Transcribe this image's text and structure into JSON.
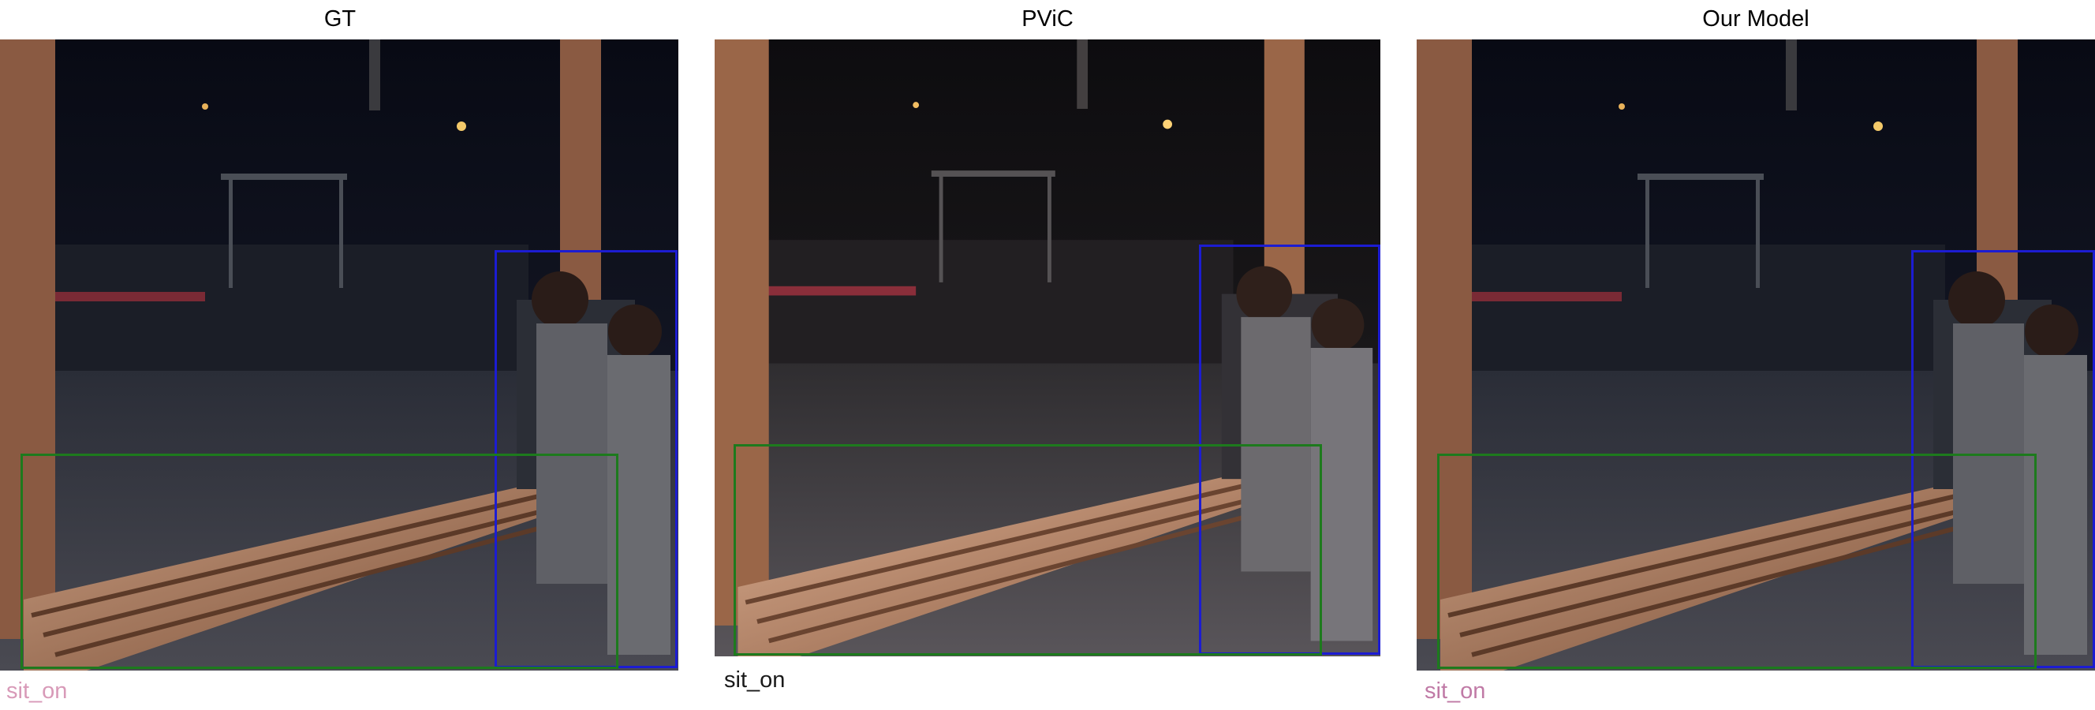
{
  "panels": [
    {
      "title": "GT",
      "caption": "sit_on",
      "caption_color": "#d89ab8"
    },
    {
      "title": "PViC",
      "caption": "sit_on",
      "caption_color": "#1a1a1a"
    },
    {
      "title": "Our Model",
      "caption": "sit_on",
      "caption_color": "#c07aa6"
    }
  ],
  "colors": {
    "human_box": "#1c1cd2",
    "object_box": "#1d7a1d",
    "background": "#ffffff"
  }
}
